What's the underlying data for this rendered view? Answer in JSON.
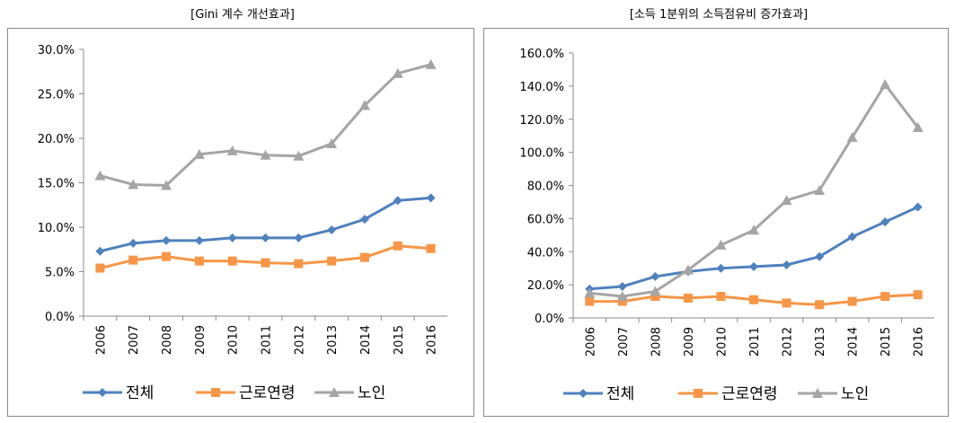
{
  "chart_data": [
    {
      "type": "line",
      "title": "[Gini 계수 개선효과]",
      "categories": [
        "2006",
        "2007",
        "2008",
        "2009",
        "2010",
        "2011",
        "2012",
        "2013",
        "2014",
        "2015",
        "2016"
      ],
      "ylim": [
        0,
        30
      ],
      "yticks": [
        {
          "value": 0,
          "label": "0.0%"
        },
        {
          "value": 5,
          "label": "5.0%"
        },
        {
          "value": 10,
          "label": "10.0%"
        },
        {
          "value": 15,
          "label": "15.0%"
        },
        {
          "value": 20,
          "label": "20.0%"
        },
        {
          "value": 25,
          "label": "25.0%"
        },
        {
          "value": 30,
          "label": "30.0%"
        }
      ],
      "legend": "bottom",
      "series": [
        {
          "name": "전체",
          "color": "#4f81bd",
          "marker": "diamond",
          "values": [
            7.3,
            8.2,
            8.5,
            8.5,
            8.8,
            8.8,
            8.8,
            9.7,
            10.9,
            13.0,
            13.3
          ]
        },
        {
          "name": "근로연령",
          "color": "#f79646",
          "marker": "square",
          "values": [
            5.4,
            6.3,
            6.7,
            6.2,
            6.2,
            6.0,
            5.9,
            6.2,
            6.6,
            7.9,
            7.6
          ]
        },
        {
          "name": "노인",
          "color": "#a5a5a5",
          "marker": "triangle",
          "values": [
            15.8,
            14.8,
            14.7,
            18.2,
            18.6,
            18.1,
            18.0,
            19.4,
            23.7,
            27.3,
            28.3
          ]
        }
      ]
    },
    {
      "type": "line",
      "title": "[소득 1분위의 소득점유비 증가효과]",
      "categories": [
        "2006",
        "2007",
        "2008",
        "2009",
        "2010",
        "2011",
        "2012",
        "2013",
        "2014",
        "2015",
        "2016"
      ],
      "ylim": [
        0,
        160
      ],
      "yticks": [
        {
          "value": 0,
          "label": "0.0%"
        },
        {
          "value": 20,
          "label": "20.0%"
        },
        {
          "value": 40,
          "label": "40.0%"
        },
        {
          "value": 60,
          "label": "60.0%"
        },
        {
          "value": 80,
          "label": "80.0%"
        },
        {
          "value": 100,
          "label": "100.0%"
        },
        {
          "value": 120,
          "label": "120.0%"
        },
        {
          "value": 140,
          "label": "140.0%"
        },
        {
          "value": 160,
          "label": "160.0%"
        }
      ],
      "legend": "bottom",
      "series": [
        {
          "name": "전체",
          "color": "#4f81bd",
          "marker": "diamond",
          "values": [
            17.5,
            19,
            25,
            28,
            30,
            31,
            32,
            37,
            49,
            58,
            67
          ]
        },
        {
          "name": "근로연령",
          "color": "#f79646",
          "marker": "square",
          "values": [
            10,
            10,
            13,
            12,
            13,
            11,
            9,
            8,
            10,
            13,
            14
          ]
        },
        {
          "name": "노인",
          "color": "#a5a5a5",
          "marker": "triangle",
          "values": [
            15,
            13,
            16,
            29,
            44,
            53,
            71,
            77,
            109,
            141,
            115
          ]
        }
      ]
    }
  ]
}
